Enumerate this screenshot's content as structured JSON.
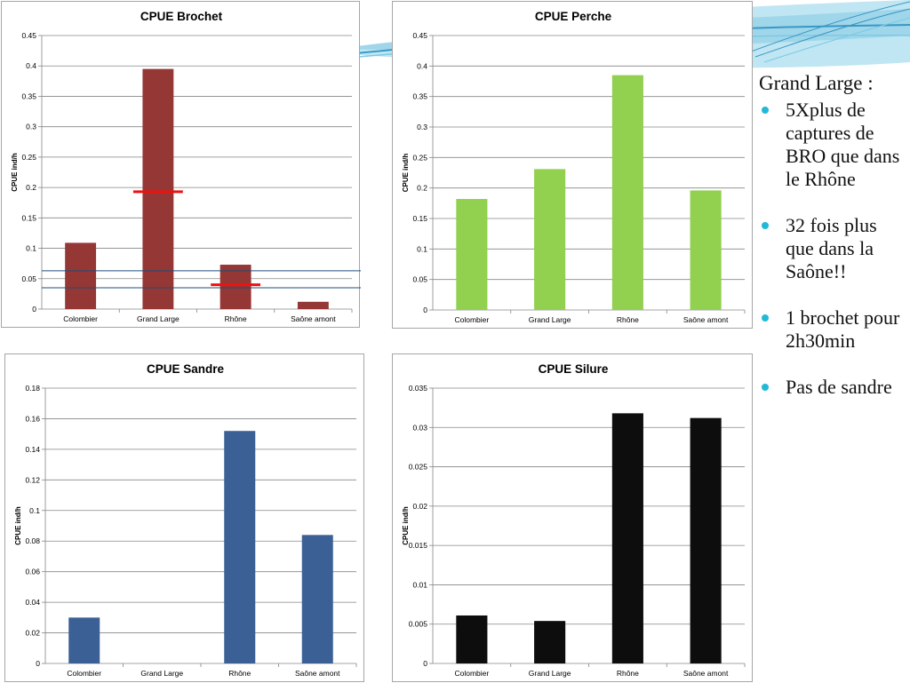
{
  "chart_data": [
    {
      "id": "brochet",
      "type": "bar",
      "title": "CPUE Brochet",
      "ylabel": "CPUE ind/h",
      "xlabel": "",
      "categories": [
        "Colombier",
        "Grand Large",
        "Rhône",
        "Saône amont"
      ],
      "values": [
        0.109,
        0.395,
        0.073,
        0.012
      ],
      "ylim": [
        0,
        0.45
      ],
      "yticks": [
        "0",
        "0.05",
        "0.1",
        "0.15",
        "0.2",
        "0.25",
        "0.3",
        "0.35",
        "0.4",
        "0.45"
      ],
      "ytick_step": 0.05,
      "color": "#953735",
      "grid": true,
      "annotations": {
        "red_marks": [
          {
            "category": "Grand Large",
            "value": 0.193
          },
          {
            "category": "Rhône",
            "value": 0.04
          }
        ],
        "blue_lines": [
          0.063,
          0.035
        ],
        "red_color": "#ee1111",
        "blue_color": "#1f4e79"
      }
    },
    {
      "id": "perche",
      "type": "bar",
      "title": "CPUE Perche",
      "ylabel": "CPUE ind/h",
      "xlabel": "",
      "categories": [
        "Colombier",
        "Grand Large",
        "Rhône",
        "Saône amont"
      ],
      "values": [
        0.182,
        0.231,
        0.385,
        0.196
      ],
      "ylim": [
        0,
        0.45
      ],
      "yticks": [
        "0",
        "0.05",
        "0.1",
        "0.15",
        "0.2",
        "0.25",
        "0.3",
        "0.35",
        "0.4",
        "0.45"
      ],
      "ytick_step": 0.05,
      "color": "#92d050",
      "grid": true
    },
    {
      "id": "sandre",
      "type": "bar",
      "title": "CPUE Sandre",
      "ylabel": "CPUE ind/h",
      "xlabel": "",
      "categories": [
        "Colombier",
        "Grand Large",
        "Rhône",
        "Saône amont"
      ],
      "values": [
        0.03,
        0,
        0.152,
        0.084
      ],
      "ylim": [
        0,
        0.18
      ],
      "yticks": [
        "0",
        "0.02",
        "0.04",
        "0.06",
        "0.08",
        "0.1",
        "0.12",
        "0.14",
        "0.16",
        "0.18"
      ],
      "ytick_step": 0.02,
      "color": "#3a6096",
      "grid": true
    },
    {
      "id": "silure",
      "type": "bar",
      "title": "CPUE Silure",
      "ylabel": "CPUE ind/h",
      "xlabel": "",
      "categories": [
        "Colombier",
        "Grand Large",
        "Rhône",
        "Saône amont"
      ],
      "values": [
        0.0061,
        0.0054,
        0.0318,
        0.0312
      ],
      "ylim": [
        0,
        0.035
      ],
      "yticks": [
        "0",
        "0.005",
        "0.01",
        "0.015",
        "0.02",
        "0.025",
        "0.03",
        "0.035"
      ],
      "ytick_step": 0.005,
      "color": "#0d0d0d",
      "grid": true
    }
  ],
  "text_panel": {
    "heading": "Grand Large :",
    "bullets": [
      "5Xplus de captures de BRO que dans le Rhône",
      "32 fois plus que dans la Saône!!",
      "1 brochet pour 2h30min",
      "Pas de sandre"
    ],
    "bullet_color": "#22b8d8"
  },
  "theme": {
    "swoosh_colors": [
      "#bfe6f2",
      "#7ec9e3",
      "#3a97c4"
    ]
  }
}
